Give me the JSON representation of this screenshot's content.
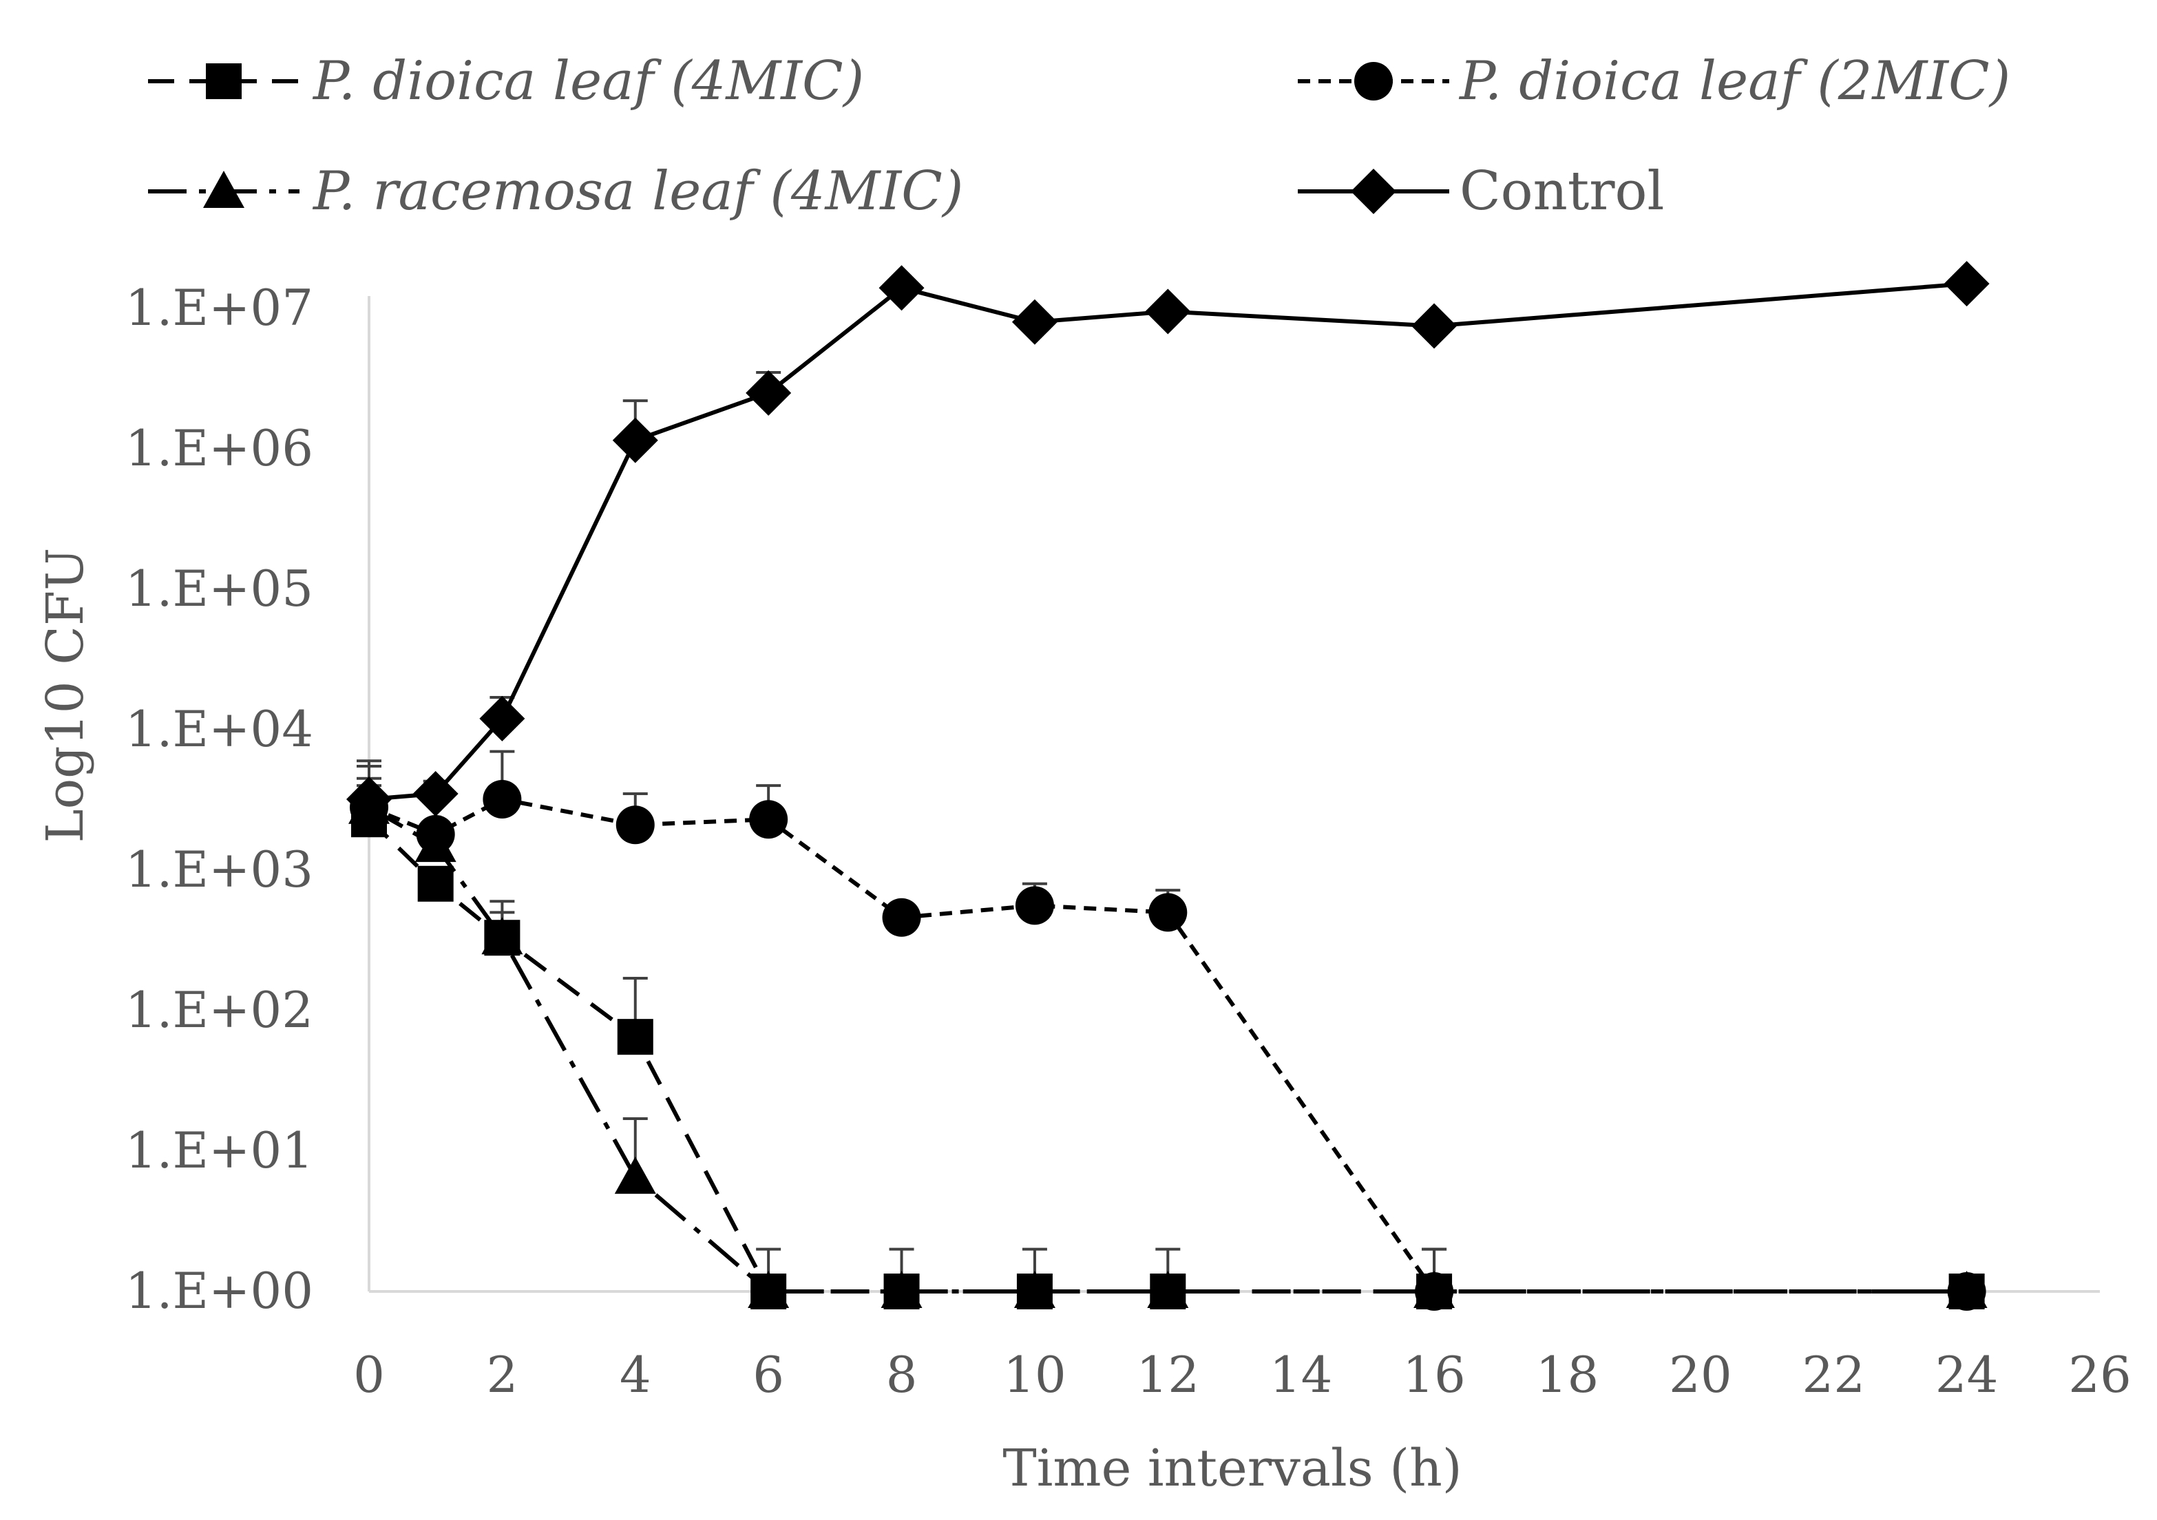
{
  "chart_data": {
    "type": "line",
    "title": "",
    "xlabel": "Time intervals (h)",
    "ylabel": "Log10 CFU",
    "yscale": "log",
    "xlim": [
      0,
      26
    ],
    "ylim": [
      1,
      10000000
    ],
    "x_ticks": [
      "0",
      "2",
      "4",
      "6",
      "8",
      "10",
      "12",
      "14",
      "16",
      "18",
      "20",
      "22",
      "24",
      "26"
    ],
    "y_ticks": [
      "1.E+00",
      "1.E+01",
      "1.E+02",
      "1.E+03",
      "1.E+04",
      "1.E+05",
      "1.E+06",
      "1.E+07"
    ],
    "legend_position": "top",
    "series": [
      {
        "name": "P. dioica leaf (4MIC)",
        "italic": true,
        "marker": "square",
        "line": "dash",
        "x": [
          0,
          1,
          2,
          4,
          6,
          8,
          10,
          12,
          16,
          24
        ],
        "values": [
          2300,
          800,
          330,
          65,
          1,
          1,
          1,
          1,
          1,
          1
        ],
        "error_upper": [
          6000,
          1000,
          600,
          170,
          2,
          2,
          2,
          2,
          2,
          null
        ]
      },
      {
        "name": "P. dioica leaf (2MIC)",
        "italic": true,
        "marker": "circle",
        "line": "short-dash",
        "x": [
          0,
          1,
          2,
          4,
          6,
          8,
          10,
          12,
          16,
          24
        ],
        "values": [
          2800,
          1800,
          3200,
          2100,
          2300,
          460,
          560,
          500,
          1,
          1
        ],
        "error_upper": [
          4500,
          3500,
          7000,
          3500,
          4000,
          null,
          800,
          720,
          2,
          null
        ]
      },
      {
        "name": "P. racemosa leaf (4MIC)",
        "italic": true,
        "marker": "triangle",
        "line": "dash-dot",
        "x": [
          0,
          1,
          2,
          4,
          6,
          8,
          10,
          12,
          16,
          24
        ],
        "values": [
          2800,
          1500,
          330,
          6.5,
          1,
          1,
          1,
          1,
          1,
          1
        ],
        "error_upper": [
          4000,
          2000,
          500,
          17,
          null,
          null,
          null,
          null,
          null,
          null
        ]
      },
      {
        "name": "Control",
        "italic": false,
        "marker": "diamond",
        "line": "solid",
        "x": [
          0,
          1,
          2,
          4,
          6,
          8,
          10,
          12,
          16,
          24
        ],
        "values": [
          3200,
          3500,
          12000,
          1150000,
          2500000,
          14000000,
          8000000,
          9500000,
          7500000,
          15000000
        ],
        "error_upper": [
          5500,
          4300,
          17000,
          2200000,
          3500000,
          null,
          null,
          null,
          null,
          null
        ]
      }
    ]
  }
}
